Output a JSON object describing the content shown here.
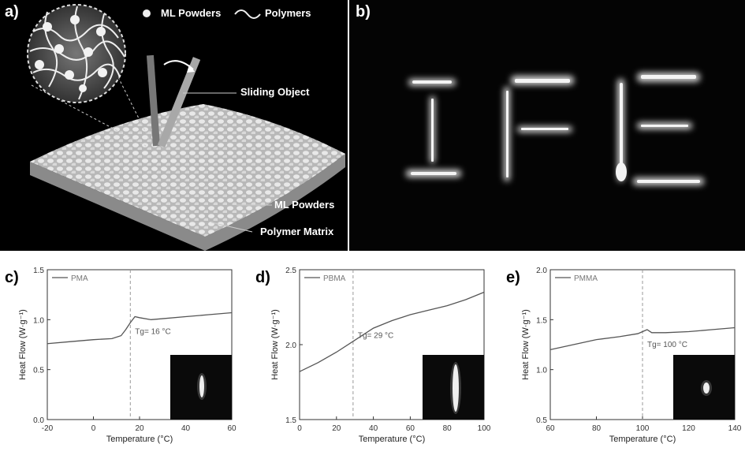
{
  "panel_a": {
    "label": "a)",
    "legend_powders": "ML Powders",
    "legend_polymers": "Polymers",
    "callout_sliding": "Sliding Object",
    "callout_powders": "ML Powders",
    "callout_matrix": "Polymer Matrix"
  },
  "panel_b": {
    "label": "b)",
    "glowing_text": "IFE"
  },
  "chart_data": [
    {
      "panel": "c)",
      "type": "line",
      "legend": "PMA",
      "xlabel": "Temperature (°C)",
      "ylabel": "Heat Flow (W·g⁻¹)",
      "xlim": [
        -20,
        60
      ],
      "ylim": [
        0.0,
        1.5
      ],
      "xticks": [
        "-20",
        "0",
        "20",
        "40",
        "60"
      ],
      "yticks": [
        "0.0",
        "0.5",
        "1.0",
        "1.5"
      ],
      "tg_value": 16,
      "tg_label": "Tg= 16 °C",
      "series": [
        {
          "x": [
            -20,
            -10,
            0,
            8,
            12,
            14,
            16,
            18,
            20,
            25,
            30,
            40,
            50,
            60
          ],
          "y": [
            0.76,
            0.78,
            0.8,
            0.81,
            0.84,
            0.9,
            0.97,
            1.03,
            1.02,
            1.0,
            1.01,
            1.03,
            1.05,
            1.07
          ]
        }
      ]
    },
    {
      "panel": "d)",
      "type": "line",
      "legend": "PBMA",
      "xlabel": "Temperature (°C)",
      "ylabel": "Heat Flow (W·g⁻¹)",
      "xlim": [
        0,
        100
      ],
      "ylim": [
        1.5,
        2.5
      ],
      "xticks": [
        "0",
        "20",
        "40",
        "60",
        "80",
        "100"
      ],
      "yticks": [
        "1.5",
        "2.0",
        "2.5"
      ],
      "tg_value": 29,
      "tg_label": "Tg= 29 °C",
      "series": [
        {
          "x": [
            0,
            10,
            20,
            30,
            40,
            50,
            60,
            70,
            80,
            90,
            100
          ],
          "y": [
            1.82,
            1.88,
            1.95,
            2.03,
            2.11,
            2.16,
            2.2,
            2.23,
            2.26,
            2.3,
            2.35
          ]
        }
      ]
    },
    {
      "panel": "e)",
      "type": "line",
      "legend": "PMMA",
      "xlabel": "Temperature (°C)",
      "ylabel": "Heat Flow (W·g⁻¹)",
      "xlim": [
        60,
        140
      ],
      "ylim": [
        0.5,
        2.0
      ],
      "xticks": [
        "60",
        "80",
        "100",
        "120",
        "140"
      ],
      "yticks": [
        "0.5",
        "1.0",
        "1.5",
        "2.0"
      ],
      "tg_value": 100,
      "tg_label": "Tg= 100 °C",
      "series": [
        {
          "x": [
            60,
            70,
            80,
            90,
            98,
            100,
            102,
            104,
            110,
            120,
            130,
            140
          ],
          "y": [
            1.2,
            1.25,
            1.3,
            1.33,
            1.36,
            1.38,
            1.4,
            1.37,
            1.37,
            1.38,
            1.4,
            1.42
          ]
        }
      ]
    }
  ]
}
